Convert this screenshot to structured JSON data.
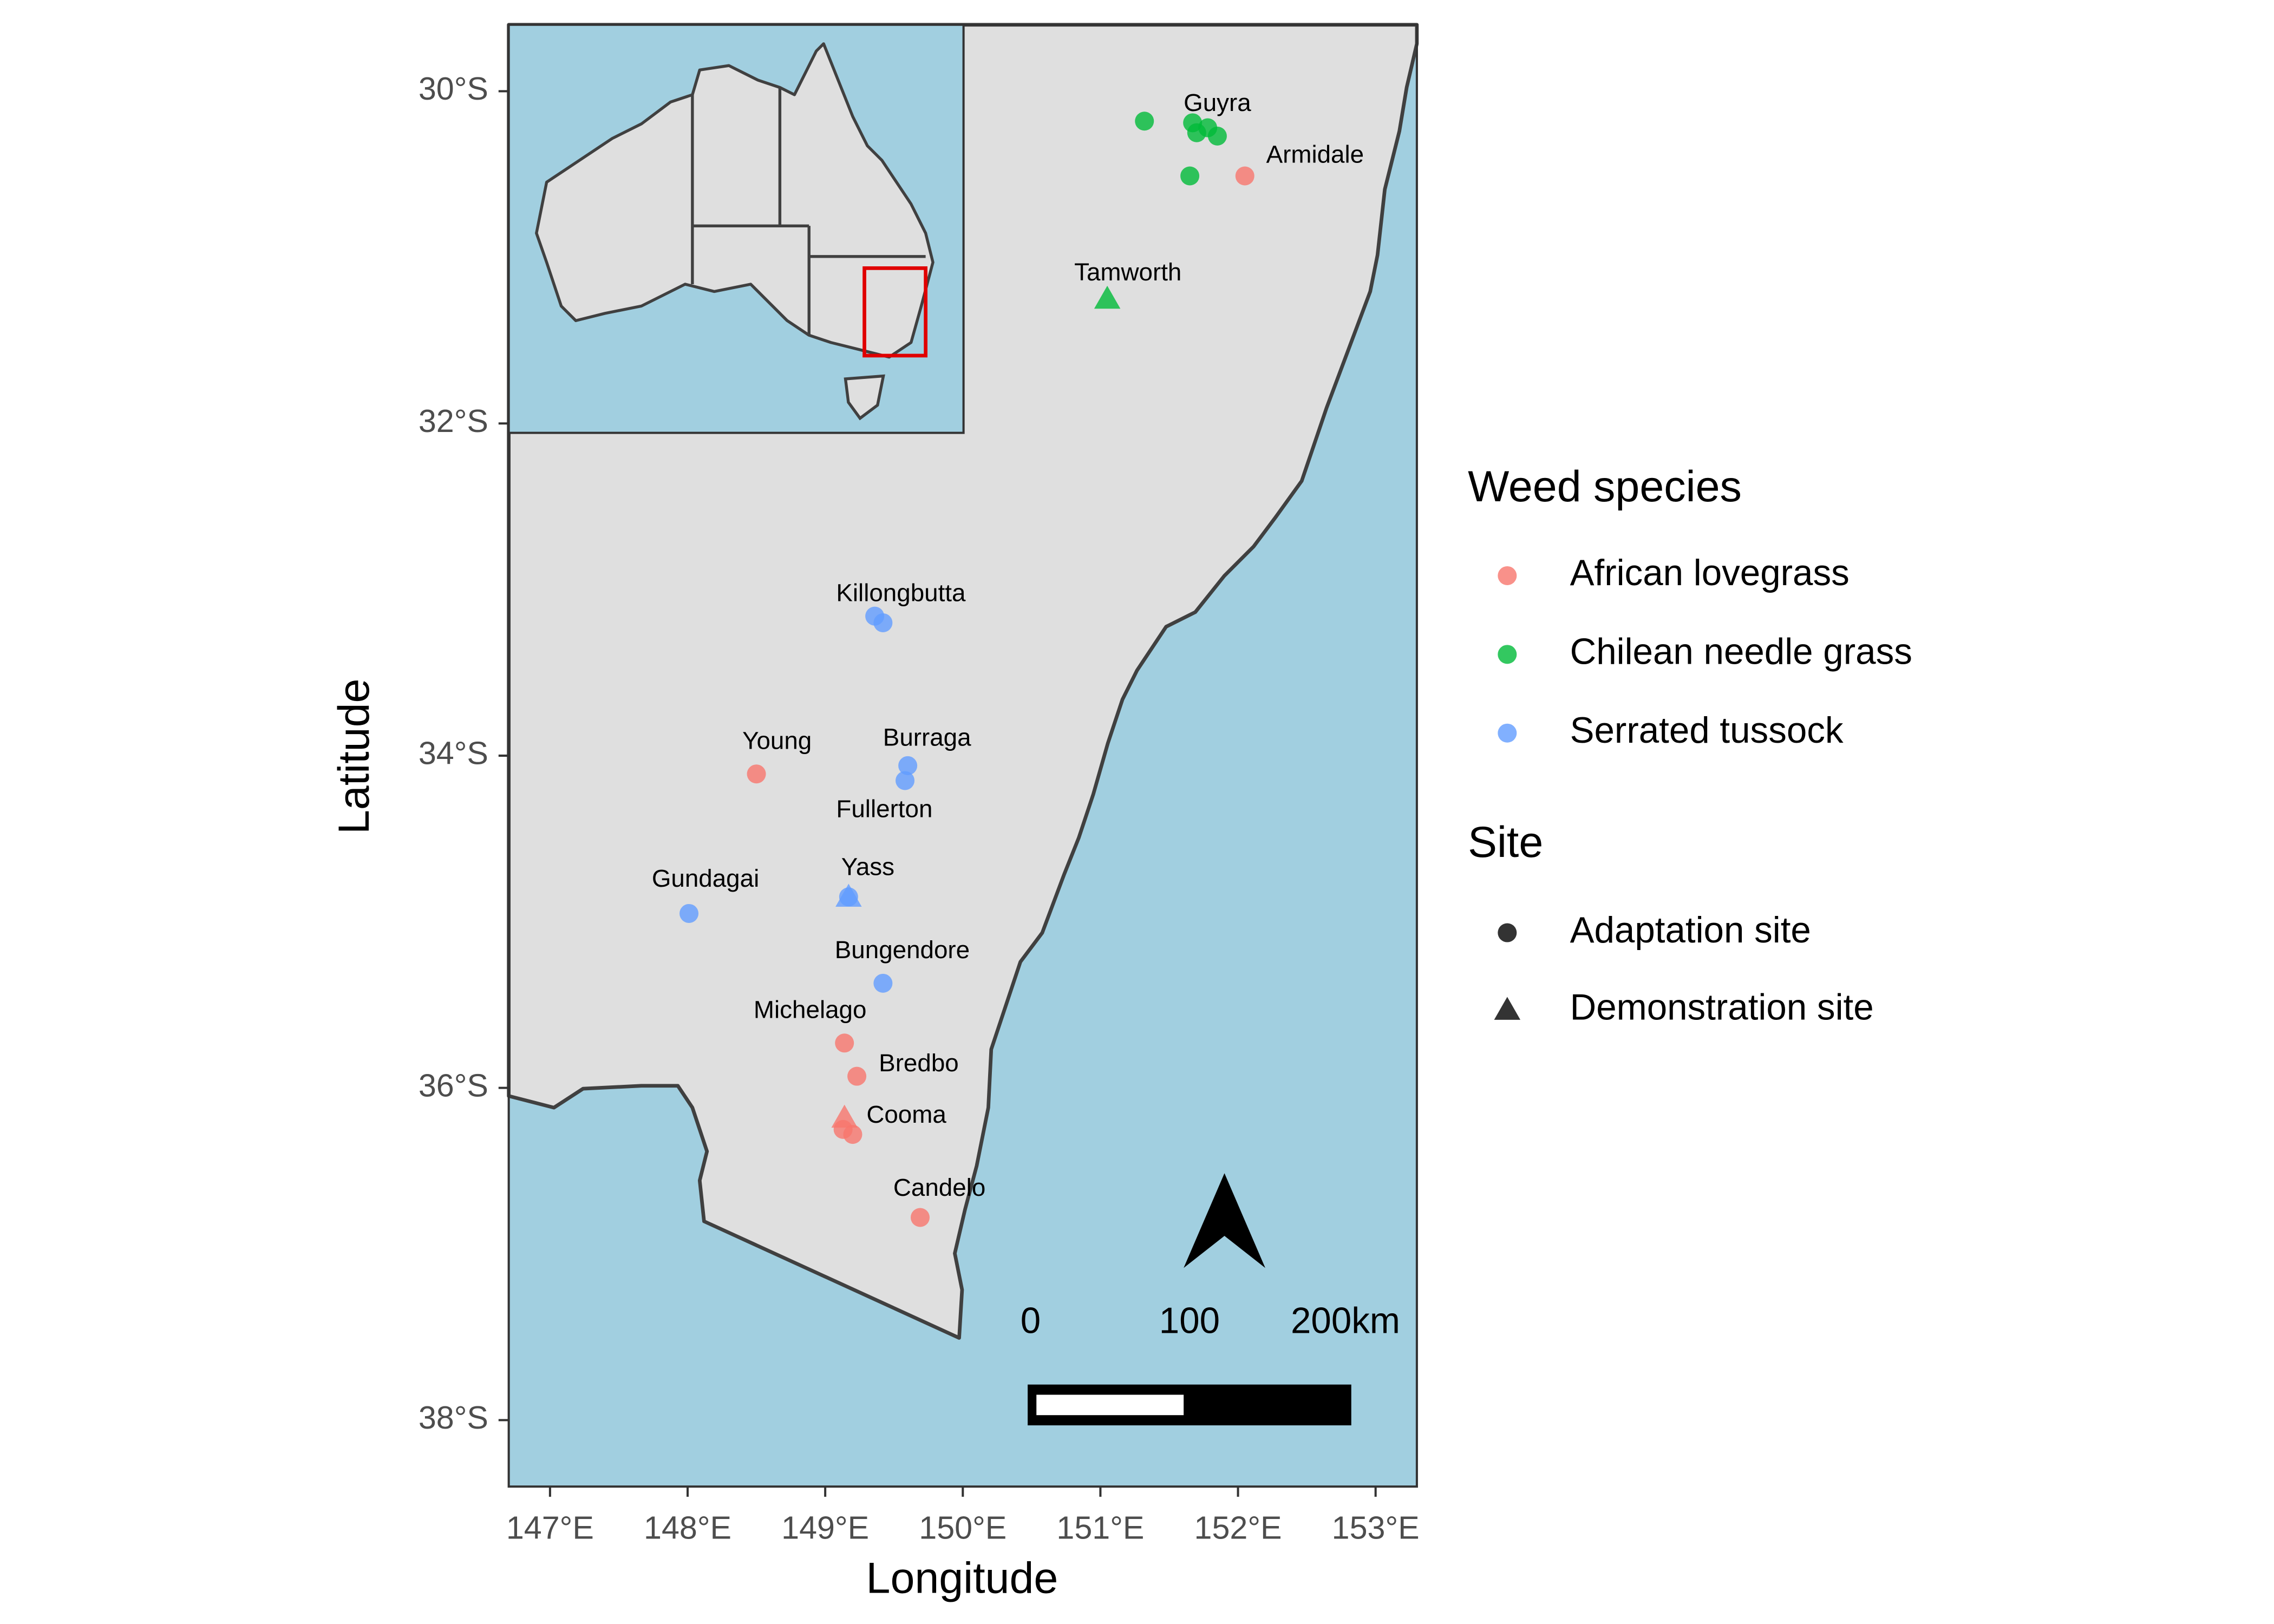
{
  "chart_data": {
    "type": "map",
    "xlabel": "Longitude",
    "ylabel": "Latitude",
    "xlim": [
      146.7,
      153.3
    ],
    "ylim": [
      -38.4,
      -29.6
    ],
    "xticks": [
      {
        "value": 147,
        "label": "147°E"
      },
      {
        "value": 148,
        "label": "148°E"
      },
      {
        "value": 149,
        "label": "149°E"
      },
      {
        "value": 150,
        "label": "150°E"
      },
      {
        "value": 151,
        "label": "151°E"
      },
      {
        "value": 152,
        "label": "152°E"
      },
      {
        "value": 153,
        "label": "153°E"
      }
    ],
    "yticks": [
      {
        "value": -30,
        "label": "30°S"
      },
      {
        "value": -32,
        "label": "32°S"
      },
      {
        "value": -34,
        "label": "34°S"
      },
      {
        "value": -36,
        "label": "36°S"
      },
      {
        "value": -38,
        "label": "38°S"
      }
    ],
    "legend_title": "Weed species",
    "series": [
      {
        "name": "African lovegrass",
        "color": "#F8766D",
        "x": [
          152.05,
          148.5,
          149.14,
          149.23,
          149.14,
          149.13,
          149.2,
          149.69
        ],
        "y": [
          -30.51,
          -34.11,
          -35.73,
          -35.93,
          -36.18,
          -36.25,
          -36.28,
          -36.78
        ],
        "marker": [
          "circle",
          "circle",
          "circle",
          "circle",
          "triangle",
          "circle",
          "circle",
          "circle"
        ]
      },
      {
        "name": "Chilean needle grass",
        "color": "#00BA38",
        "x": [
          151.32,
          151.67,
          151.7,
          151.78,
          151.85,
          151.65,
          151.05
        ],
        "y": [
          -30.18,
          -30.19,
          -30.25,
          -30.22,
          -30.27,
          -30.51,
          -31.25
        ],
        "marker": [
          "circle",
          "circle",
          "circle",
          "circle",
          "circle",
          "circle",
          "triangle"
        ]
      },
      {
        "name": "Serrated tussock",
        "color": "#619CFF",
        "x": [
          149.36,
          149.42,
          149.6,
          149.58,
          149.17,
          149.17,
          148.01,
          149.42
        ],
        "y": [
          -33.16,
          -33.2,
          -34.06,
          -34.15,
          -34.85,
          -34.85,
          -34.95,
          -35.37
        ],
        "marker": [
          "circle",
          "circle",
          "circle",
          "circle",
          "circle",
          "triangle",
          "circle",
          "circle"
        ]
      }
    ],
    "site_legend": {
      "title": "Site",
      "entries": [
        {
          "name": "Adaptation site",
          "marker": "circle"
        },
        {
          "name": "Demonstration site",
          "marker": "triangle"
        }
      ]
    },
    "annotations": [
      {
        "text": "Guyra",
        "x": 151.85,
        "y": -30.08
      },
      {
        "text": "Armidale",
        "x": 152.56,
        "y": -30.39
      },
      {
        "text": "Tamworth",
        "x": 151.2,
        "y": -31.1
      },
      {
        "text": "Killongbutta",
        "x": 149.55,
        "y": -33.03
      },
      {
        "text": "Burraga",
        "x": 149.74,
        "y": -33.9
      },
      {
        "text": "Fullerton",
        "x": 149.43,
        "y": -34.33
      },
      {
        "text": "Young",
        "x": 148.65,
        "y": -33.92
      },
      {
        "text": "Yass",
        "x": 149.31,
        "y": -34.68
      },
      {
        "text": "Gundagai",
        "x": 148.13,
        "y": -34.75
      },
      {
        "text": "Bungendore",
        "x": 149.56,
        "y": -35.18
      },
      {
        "text": "Michelago",
        "x": 148.89,
        "y": -35.54
      },
      {
        "text": "Bredbo",
        "x": 149.68,
        "y": -35.86
      },
      {
        "text": "Cooma",
        "x": 149.59,
        "y": -36.17
      },
      {
        "text": "Candelo",
        "x": 149.83,
        "y": -36.61
      }
    ],
    "scale_bar": {
      "labels": [
        "0",
        "100",
        "200km"
      ]
    }
  }
}
